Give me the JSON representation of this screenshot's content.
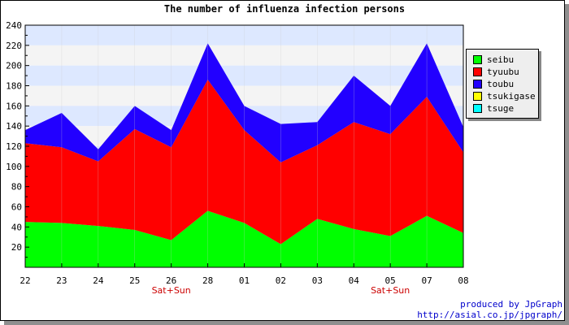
{
  "chart_data": {
    "type": "area",
    "stacked": true,
    "title": "The number of influenza infection persons",
    "categories": [
      "22",
      "23",
      "24",
      "25",
      "26",
      "28",
      "01",
      "02",
      "03",
      "04",
      "05",
      "07",
      "08"
    ],
    "category_notes": [
      {
        "category": "26",
        "text": "Sat+Sun"
      },
      {
        "category": "05",
        "text": "Sat+Sun"
      }
    ],
    "ylim": [
      0,
      240
    ],
    "yticks": [
      20,
      40,
      60,
      80,
      100,
      120,
      140,
      160,
      180,
      200,
      220,
      240
    ],
    "series": [
      {
        "name": "seibu",
        "color": "#00ff00",
        "values": [
          45,
          44,
          41,
          37,
          27,
          56,
          44,
          23,
          48,
          38,
          31,
          51,
          34
        ]
      },
      {
        "name": "tyuubu",
        "color": "#ff0000",
        "values": [
          78,
          75,
          64,
          100,
          92,
          130,
          92,
          81,
          73,
          106,
          101,
          118,
          80
        ]
      },
      {
        "name": "toubu",
        "color": "#2200ff",
        "values": [
          13,
          34,
          12,
          23,
          17,
          36,
          24,
          38,
          23,
          46,
          28,
          53,
          25
        ]
      },
      {
        "name": "tsukigase",
        "color": "#ffff00",
        "values": [
          0,
          0,
          0,
          0,
          0,
          0,
          0,
          0,
          0,
          0,
          0,
          0,
          0
        ]
      },
      {
        "name": "tsuge",
        "color": "#00ffff",
        "values": [
          0,
          0,
          0,
          0,
          0,
          0,
          0,
          0,
          0,
          0,
          0,
          0,
          0
        ]
      }
    ],
    "legend_position": "right",
    "plot_background_bands": [
      "#dde8ff",
      "#f4f4f4"
    ],
    "note_color": "#cc0000"
  },
  "credit": {
    "line1": "produced by JpGraph",
    "line2": "http://asial.co.jp/jpgraph/"
  }
}
